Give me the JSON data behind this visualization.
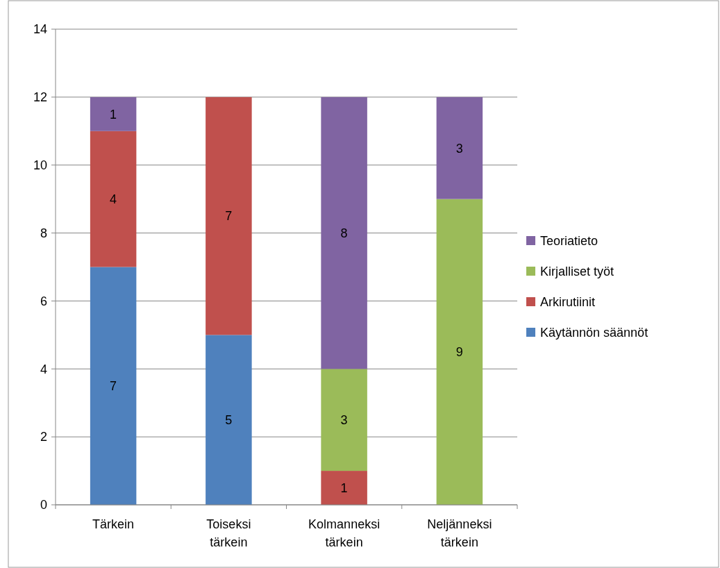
{
  "chart_data": {
    "type": "bar",
    "stacked": true,
    "categories": [
      "Tärkein",
      "Toiseksi tärkein",
      "Kolmanneksi tärkein",
      "Neljänneksi tärkein"
    ],
    "series": [
      {
        "name": "Käytännön säännöt",
        "color": "#4f81bd",
        "values": [
          7,
          5,
          null,
          null
        ]
      },
      {
        "name": "Arkirutiinit",
        "color": "#c0504d",
        "values": [
          4,
          7,
          1,
          null
        ]
      },
      {
        "name": "Kirjalliset työt",
        "color": "#9bbb59",
        "values": [
          null,
          null,
          3,
          9
        ]
      },
      {
        "name": "Teoriatieto",
        "color": "#8064a2",
        "values": [
          1,
          null,
          8,
          3
        ]
      }
    ],
    "ylim": [
      0,
      14
    ],
    "yticks": [
      0,
      2,
      4,
      6,
      8,
      10,
      12,
      14
    ],
    "grid": "y",
    "legend": "right",
    "data_labels": true
  }
}
